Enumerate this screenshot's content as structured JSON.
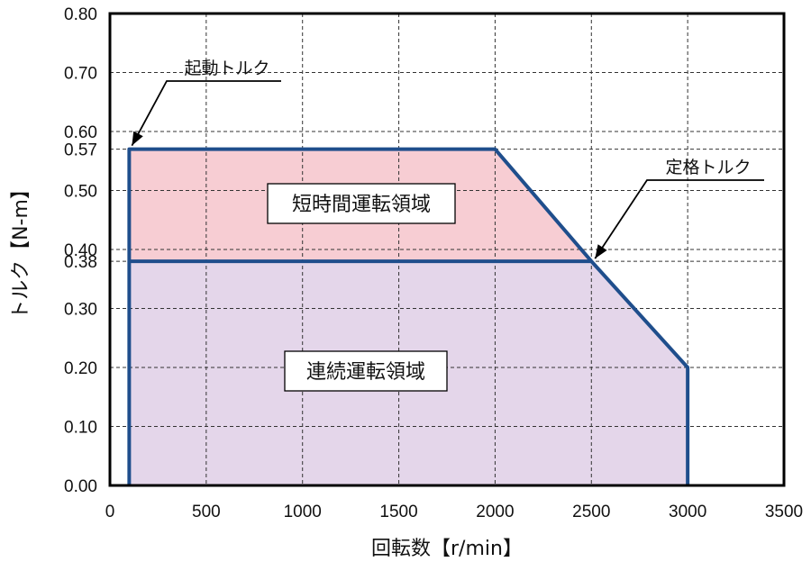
{
  "chart_data": {
    "type": "area",
    "xlabel": "回転数【r/min】",
    "ylabel": "トルク【N-m】",
    "xlim": [
      0,
      3500
    ],
    "ylim": [
      0,
      0.8
    ],
    "grid": true,
    "x_ticks": [
      0,
      500,
      1000,
      1500,
      2000,
      2500,
      3000,
      3500
    ],
    "x_tick_labels": [
      "0",
      "500",
      "1000",
      "1500",
      "2000",
      "2500",
      "3000",
      "3500"
    ],
    "y_ticks": [
      0,
      0.1,
      0.2,
      0.3,
      0.38,
      0.4,
      0.5,
      0.57,
      0.6,
      0.7,
      0.8
    ],
    "y_tick_labels": [
      "0.00",
      "0.10",
      "0.20",
      "0.30",
      "0.38",
      "0.40",
      "0.50",
      "0.57",
      "0.60",
      "0.70",
      "0.80"
    ],
    "series": [
      {
        "x": [
          100,
          100,
          2000,
          2500,
          3000,
          3000
        ],
        "y": [
          0,
          0.57,
          0.57,
          0.38,
          0.2,
          0
        ],
        "color": "#1f4e8c"
      }
    ],
    "regions": [
      {
        "label": "短時間運転領域",
        "color": "#f7cdd3",
        "polygon": [
          [
            100,
            0.38
          ],
          [
            100,
            0.57
          ],
          [
            2000,
            0.57
          ],
          [
            2500,
            0.38
          ]
        ]
      },
      {
        "label": "連続運転領域",
        "color": "#e4d6ea",
        "polygon": [
          [
            100,
            0
          ],
          [
            100,
            0.38
          ],
          [
            2500,
            0.38
          ],
          [
            3000,
            0.2
          ],
          [
            3000,
            0
          ]
        ]
      }
    ],
    "annotations": [
      {
        "text": "起動トルク",
        "point": [
          100,
          0.57
        ]
      },
      {
        "text": "定格トルク",
        "point": [
          2500,
          0.38
        ]
      }
    ],
    "region_labels": [
      "短時間運転領域",
      "連続運転領域"
    ]
  }
}
